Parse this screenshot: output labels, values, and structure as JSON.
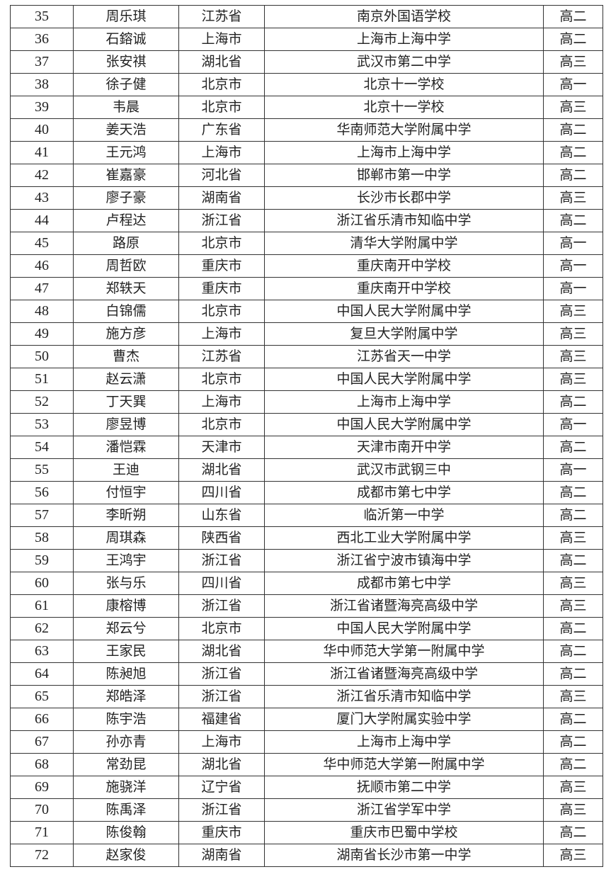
{
  "table": {
    "rows": [
      [
        "35",
        "周乐琪",
        "江苏省",
        "南京外国语学校",
        "高二"
      ],
      [
        "36",
        "石鎔诚",
        "上海市",
        "上海市上海中学",
        "高二"
      ],
      [
        "37",
        "张安祺",
        "湖北省",
        "武汉市第二中学",
        "高三"
      ],
      [
        "38",
        "徐子健",
        "北京市",
        "北京十一学校",
        "高一"
      ],
      [
        "39",
        "韦晨",
        "北京市",
        "北京十一学校",
        "高三"
      ],
      [
        "40",
        "姜天浩",
        "广东省",
        "华南师范大学附属中学",
        "高二"
      ],
      [
        "41",
        "王元鸿",
        "上海市",
        "上海市上海中学",
        "高二"
      ],
      [
        "42",
        "崔嘉豪",
        "河北省",
        "邯郸市第一中学",
        "高二"
      ],
      [
        "43",
        "廖子豪",
        "湖南省",
        "长沙市长郡中学",
        "高三"
      ],
      [
        "44",
        "卢程达",
        "浙江省",
        "浙江省乐清市知临中学",
        "高二"
      ],
      [
        "45",
        "路原",
        "北京市",
        "清华大学附属中学",
        "高一"
      ],
      [
        "46",
        "周哲欧",
        "重庆市",
        "重庆南开中学校",
        "高一"
      ],
      [
        "47",
        "郑轶天",
        "重庆市",
        "重庆南开中学校",
        "高一"
      ],
      [
        "48",
        "白锦儒",
        "北京市",
        "中国人民大学附属中学",
        "高三"
      ],
      [
        "49",
        "施方彦",
        "上海市",
        "复旦大学附属中学",
        "高三"
      ],
      [
        "50",
        "曹杰",
        "江苏省",
        "江苏省天一中学",
        "高三"
      ],
      [
        "51",
        "赵云潇",
        "北京市",
        "中国人民大学附属中学",
        "高三"
      ],
      [
        "52",
        "丁天巽",
        "上海市",
        "上海市上海中学",
        "高二"
      ],
      [
        "53",
        "廖昱博",
        "北京市",
        "中国人民大学附属中学",
        "高一"
      ],
      [
        "54",
        "潘恺霖",
        "天津市",
        "天津市南开中学",
        "高二"
      ],
      [
        "55",
        "王迪",
        "湖北省",
        "武汉市武钢三中",
        "高一"
      ],
      [
        "56",
        "付恒宇",
        "四川省",
        "成都市第七中学",
        "高二"
      ],
      [
        "57",
        "李昕朔",
        "山东省",
        "临沂第一中学",
        "高二"
      ],
      [
        "58",
        "周琪森",
        "陕西省",
        "西北工业大学附属中学",
        "高三"
      ],
      [
        "59",
        "王鸿宇",
        "浙江省",
        "浙江省宁波市镇海中学",
        "高二"
      ],
      [
        "60",
        "张与乐",
        "四川省",
        "成都市第七中学",
        "高三"
      ],
      [
        "61",
        "康榕博",
        "浙江省",
        "浙江省诸暨海亮高级中学",
        "高三"
      ],
      [
        "62",
        "郑云兮",
        "北京市",
        "中国人民大学附属中学",
        "高二"
      ],
      [
        "63",
        "王家民",
        "湖北省",
        "华中师范大学第一附属中学",
        "高二"
      ],
      [
        "64",
        "陈昶旭",
        "浙江省",
        "浙江省诸暨海亮高级中学",
        "高二"
      ],
      [
        "65",
        "郑皓泽",
        "浙江省",
        "浙江省乐清市知临中学",
        "高三"
      ],
      [
        "66",
        "陈宇浩",
        "福建省",
        "厦门大学附属实验中学",
        "高二"
      ],
      [
        "67",
        "孙亦青",
        "上海市",
        "上海市上海中学",
        "高二"
      ],
      [
        "68",
        "常劲昆",
        "湖北省",
        "华中师范大学第一附属中学",
        "高二"
      ],
      [
        "69",
        "施骁洋",
        "辽宁省",
        "抚顺市第二中学",
        "高三"
      ],
      [
        "70",
        "陈禹泽",
        "浙江省",
        "浙江省学军中学",
        "高三"
      ],
      [
        "71",
        "陈俊翰",
        "重庆市",
        "重庆市巴蜀中学校",
        "高二"
      ],
      [
        "72",
        "赵家俊",
        "湖南省",
        "湖南省长沙市第一中学",
        "高三"
      ]
    ]
  }
}
